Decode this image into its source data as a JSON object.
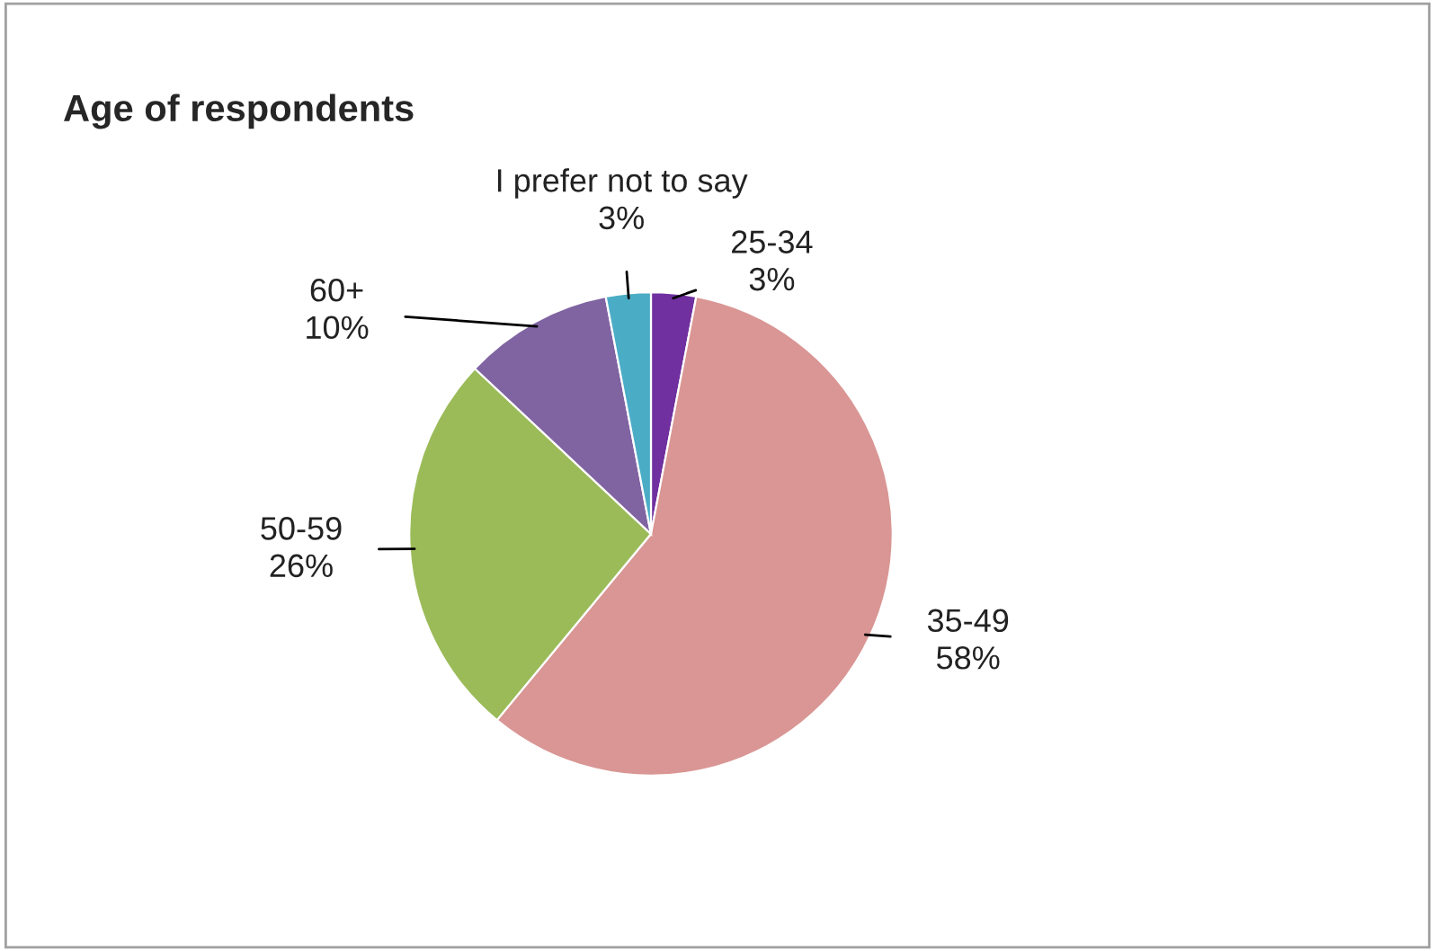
{
  "chart_data": {
    "type": "pie",
    "title": "Age of respondents",
    "categories": [
      "25-34",
      "35-49",
      "50-59",
      "60+",
      "I prefer not to say"
    ],
    "values": [
      3,
      58,
      26,
      10,
      3
    ],
    "colors": [
      "#7030a0",
      "#d99694",
      "#9bbb59",
      "#8064a2",
      "#4bacc6"
    ],
    "value_labels": [
      "3%",
      "58%",
      "26%",
      "10%",
      "3%"
    ],
    "legend": false
  }
}
